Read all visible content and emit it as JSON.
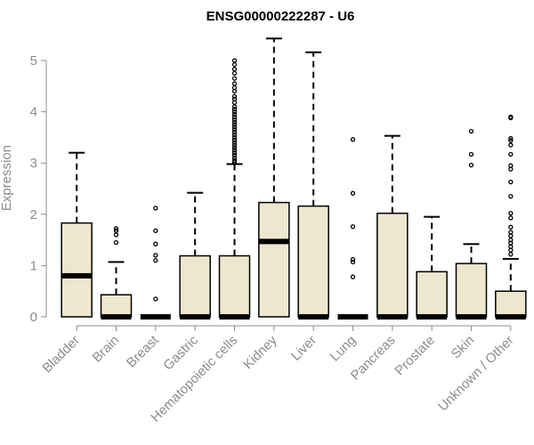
{
  "chart_data": {
    "type": "boxplot",
    "title": "ENSG00000222287 - U6",
    "xlabel": "",
    "ylabel": "Expression",
    "ylim": [
      0,
      5.5
    ],
    "yticks": [
      0,
      1,
      2,
      3,
      4,
      5
    ],
    "grid": false,
    "legend": "none",
    "colors": {
      "box_fill": "#ede7cf",
      "box_stroke": "#000000",
      "axis": "#8c8c8c",
      "text": "#8c8c8c"
    },
    "categories": [
      "Bladder",
      "Brain",
      "Breast",
      "Gastric",
      "Hematopoietic cells",
      "Kidney",
      "Liver",
      "Lung",
      "Pancreas",
      "Prostate",
      "Skin",
      "Unknown / Other"
    ],
    "boxes": [
      {
        "category": "Bladder",
        "lower_whisker": 0,
        "q1": 0,
        "median": 0.8,
        "q3": 1.83,
        "upper_whisker": 3.2,
        "outliers": []
      },
      {
        "category": "Brain",
        "lower_whisker": 0,
        "q1": 0,
        "median": 0,
        "q3": 0.43,
        "upper_whisker": 1.07,
        "outliers": [
          1.72,
          1.68,
          1.6,
          1.45
        ]
      },
      {
        "category": "Breast",
        "lower_whisker": 0,
        "q1": 0,
        "median": 0,
        "q3": 0,
        "upper_whisker": 0,
        "outliers": [
          2.12,
          1.68,
          1.42,
          1.2,
          1.1,
          0.35
        ]
      },
      {
        "category": "Gastric",
        "lower_whisker": 0,
        "q1": 0,
        "median": 0,
        "q3": 1.19,
        "upper_whisker": 2.42,
        "outliers": []
      },
      {
        "category": "Hematopoietic cells",
        "lower_whisker": 0,
        "q1": 0,
        "median": 0,
        "q3": 1.19,
        "upper_whisker": 2.98,
        "outliers": [
          5.0,
          4.92,
          4.83,
          4.75,
          4.65,
          4.55,
          4.47,
          4.4,
          4.3,
          4.25,
          4.18,
          4.1,
          4.05,
          4.0,
          3.95,
          3.9,
          3.85,
          3.8,
          3.75,
          3.7,
          3.65,
          3.6,
          3.55,
          3.5,
          3.45,
          3.4,
          3.35,
          3.3,
          3.25,
          3.2,
          3.15,
          3.1,
          3.05,
          3.02
        ]
      },
      {
        "category": "Kidney",
        "lower_whisker": 0,
        "q1": 0,
        "median": 1.47,
        "q3": 2.23,
        "upper_whisker": 5.43,
        "outliers": []
      },
      {
        "category": "Liver",
        "lower_whisker": 0,
        "q1": 0,
        "median": 0,
        "q3": 2.16,
        "upper_whisker": 5.16,
        "outliers": []
      },
      {
        "category": "Lung",
        "lower_whisker": 0,
        "q1": 0,
        "median": 0,
        "q3": 0,
        "upper_whisker": 0,
        "outliers": [
          3.46,
          2.41,
          1.76,
          1.12,
          1.07,
          0.78
        ]
      },
      {
        "category": "Pancreas",
        "lower_whisker": 0,
        "q1": 0,
        "median": 0,
        "q3": 2.02,
        "upper_whisker": 3.53,
        "outliers": []
      },
      {
        "category": "Prostate",
        "lower_whisker": 0,
        "q1": 0,
        "median": 0,
        "q3": 0.88,
        "upper_whisker": 1.95,
        "outliers": []
      },
      {
        "category": "Skin",
        "lower_whisker": 0,
        "q1": 0,
        "median": 0,
        "q3": 1.04,
        "upper_whisker": 1.42,
        "outliers": [
          3.62,
          3.17,
          2.96
        ]
      },
      {
        "category": "Unknown / Other",
        "lower_whisker": 0,
        "q1": 0,
        "median": 0,
        "q3": 0.5,
        "upper_whisker": 1.13,
        "outliers": [
          3.9,
          3.88,
          3.48,
          3.44,
          3.35,
          3.17,
          2.95,
          2.88,
          2.63,
          2.35,
          2.02,
          1.93,
          1.75,
          1.65,
          1.58,
          1.5,
          1.44,
          1.37,
          1.3,
          1.22
        ]
      }
    ]
  }
}
